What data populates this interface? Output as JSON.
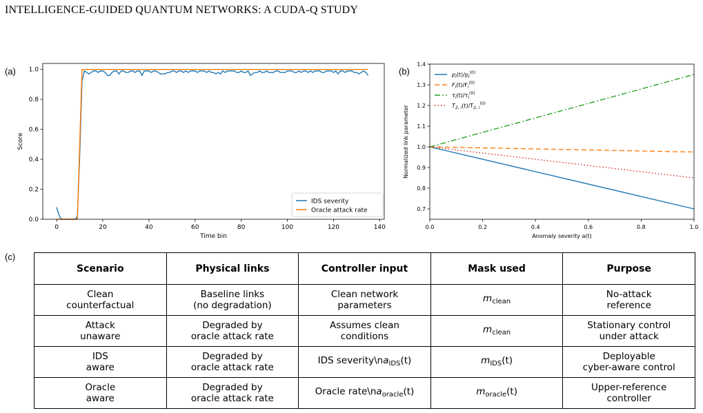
{
  "header": "INTELLIGENCE-GUIDED QUANTUM NETWORKS: A CUDA-Q STUDY",
  "panels": {
    "a": "(a)",
    "b": "(b)",
    "c": "(c)"
  },
  "chart_data": [
    {
      "type": "line",
      "xlabel": "Time bin",
      "ylabel": "Score",
      "xlim": [
        -6,
        142
      ],
      "ylim": [
        0,
        1.04
      ],
      "xticks": [
        "0",
        "20",
        "40",
        "60",
        "80",
        "100",
        "120",
        "140"
      ],
      "yticks": [
        "0.0",
        "0.2",
        "0.4",
        "0.6",
        "0.8",
        "1.0"
      ],
      "legend_position": "lower-right",
      "series": [
        {
          "name": "IDS severity",
          "color": "#1f77b4",
          "x": [
            0,
            1,
            2,
            3,
            4,
            5,
            6,
            7,
            8,
            9,
            10,
            11,
            12,
            13,
            14,
            15,
            16,
            17,
            18,
            19,
            20,
            21,
            22,
            23,
            24,
            25,
            26,
            27,
            28,
            29,
            30,
            31,
            32,
            33,
            34,
            35,
            36,
            37,
            38,
            39,
            40,
            41,
            42,
            43,
            44,
            45,
            46,
            47,
            48,
            49,
            50,
            51,
            52,
            53,
            54,
            55,
            56,
            57,
            58,
            59,
            60,
            61,
            62,
            63,
            64,
            65,
            66,
            67,
            68,
            69,
            70,
            71,
            72,
            73,
            74,
            75,
            76,
            77,
            78,
            79,
            80,
            81,
            82,
            83,
            84,
            85,
            86,
            87,
            88,
            89,
            90,
            91,
            92,
            93,
            94,
            95,
            96,
            97,
            98,
            99,
            100,
            101,
            102,
            103,
            104,
            105,
            106,
            107,
            108,
            109,
            110,
            111,
            112,
            113,
            114,
            115,
            116,
            117,
            118,
            119,
            120,
            121,
            122,
            123,
            124,
            125,
            126,
            127,
            128,
            129,
            130,
            131,
            132,
            133,
            134,
            135
          ],
          "values": [
            0.08,
            0.03,
            0.0,
            0.0,
            0.0,
            0.0,
            0.0,
            0.0,
            0.0,
            0.02,
            0.42,
            0.92,
            0.99,
            0.98,
            0.97,
            0.98,
            0.99,
            0.99,
            0.98,
            0.99,
            0.99,
            0.98,
            0.96,
            0.96,
            0.98,
            0.99,
            0.99,
            0.97,
            0.99,
            0.99,
            0.98,
            0.98,
            0.99,
            0.99,
            0.98,
            0.99,
            0.99,
            0.96,
            0.99,
            0.99,
            0.99,
            0.98,
            0.99,
            0.99,
            0.98,
            0.97,
            0.97,
            0.97,
            0.98,
            0.98,
            0.99,
            0.99,
            0.98,
            0.99,
            0.99,
            0.98,
            0.99,
            0.98,
            0.99,
            0.99,
            0.99,
            0.98,
            0.99,
            0.99,
            0.99,
            0.98,
            0.99,
            0.98,
            0.98,
            0.97,
            0.98,
            0.97,
            0.99,
            0.98,
            0.99,
            0.99,
            0.99,
            0.99,
            0.98,
            0.98,
            0.99,
            0.98,
            0.98,
            0.99,
            0.96,
            0.97,
            0.98,
            0.98,
            0.99,
            0.98,
            0.98,
            0.99,
            0.98,
            0.98,
            0.98,
            0.99,
            0.99,
            0.98,
            0.98,
            0.98,
            0.99,
            0.99,
            0.99,
            0.98,
            0.98,
            0.99,
            0.98,
            0.99,
            0.99,
            0.98,
            0.99,
            0.98,
            0.99,
            0.99,
            0.99,
            0.98,
            0.98,
            0.99,
            0.99,
            0.99,
            0.98,
            0.99,
            0.97,
            0.99,
            0.99,
            0.98,
            0.99,
            0.99,
            0.99,
            0.98,
            0.98,
            0.97,
            0.98,
            0.99,
            0.98,
            0.96
          ]
        },
        {
          "name": "Oracle attack rate",
          "color": "#ff7f0e",
          "x": [
            0,
            9,
            11,
            135
          ],
          "values": [
            0.0,
            0.0,
            1.0,
            1.0
          ]
        }
      ]
    },
    {
      "type": "line",
      "xlabel": "Anomaly severity a(t)",
      "ylabel": "Normalized link parameter",
      "xlim": [
        0,
        1
      ],
      "ylim": [
        0.65,
        1.4
      ],
      "xticks": [
        "0.0",
        "0.2",
        "0.4",
        "0.6",
        "0.8",
        "1.0"
      ],
      "yticks": [
        "0.7",
        "0.8",
        "0.9",
        "1.0",
        "1.1",
        "1.2",
        "1.3",
        "1.4"
      ],
      "legend_position": "upper-left",
      "series": [
        {
          "label_main": "p",
          "label_idx": "i",
          "label_tail": "(t)/p",
          "label_sup": "(0)",
          "color": "#1f77b4",
          "dash": "",
          "x": [
            0,
            1
          ],
          "values": [
            1.0,
            0.7
          ]
        },
        {
          "label_main": "F",
          "label_idx": "i",
          "label_tail": "(t)/F",
          "label_sup": "(0)",
          "color": "#ff7f0e",
          "dash": "7 4",
          "x": [
            0,
            1
          ],
          "values": [
            1.0,
            0.975
          ]
        },
        {
          "label_main": "τ",
          "label_idx": "i",
          "label_tail": "(t)/τ",
          "label_sup": "(0)",
          "color": "#2ca02c",
          "dash": "8 3 2 3",
          "x": [
            0,
            1
          ],
          "values": [
            1.0,
            1.35
          ]
        },
        {
          "label_main": "T",
          "label_idx": "2, i",
          "label_tail": "(t)/T",
          "label_sup": "(0)",
          "color": "#d62728",
          "dash": "1.5 3",
          "x": [
            0,
            1
          ],
          "values": [
            1.0,
            0.85
          ]
        }
      ]
    }
  ],
  "table": {
    "headers": [
      "Scenario",
      "Physical links",
      "Controller input",
      "Mask used",
      "Purpose"
    ],
    "rows": [
      {
        "scenario": "Clean\ncounterfactual",
        "links": "Baseline links\n(no degradation)",
        "input": "Clean network\nparameters",
        "mask_var": "m",
        "mask_sub": "clean",
        "mask_arg": "",
        "purpose": "No-attack\nreference"
      },
      {
        "scenario": "Attack\nunaware",
        "links": "Degraded by\noracle attack rate",
        "input": "Assumes clean\nconditions",
        "mask_var": "m",
        "mask_sub": "clean",
        "mask_arg": "",
        "purpose": "Stationary control\nunder attack"
      },
      {
        "scenario": "IDS\naware",
        "links": "Degraded by\noracle attack rate",
        "input_prefix": "IDS severity\\n",
        "input_var": "a",
        "input_sub": "IDS",
        "input_arg": "(t)",
        "mask_var": "m",
        "mask_sub": "IDS",
        "mask_arg": "(t)",
        "purpose": "Deployable\ncyber-aware control"
      },
      {
        "scenario": "Oracle\naware",
        "links": "Degraded by\noracle attack rate",
        "input_prefix": "Oracle rate\\n",
        "input_var": "a",
        "input_sub": "oracle",
        "input_arg": "(t)",
        "mask_var": "m",
        "mask_sub": "oracle",
        "mask_arg": "(t)",
        "purpose": "Upper-reference\ncontroller"
      }
    ]
  }
}
